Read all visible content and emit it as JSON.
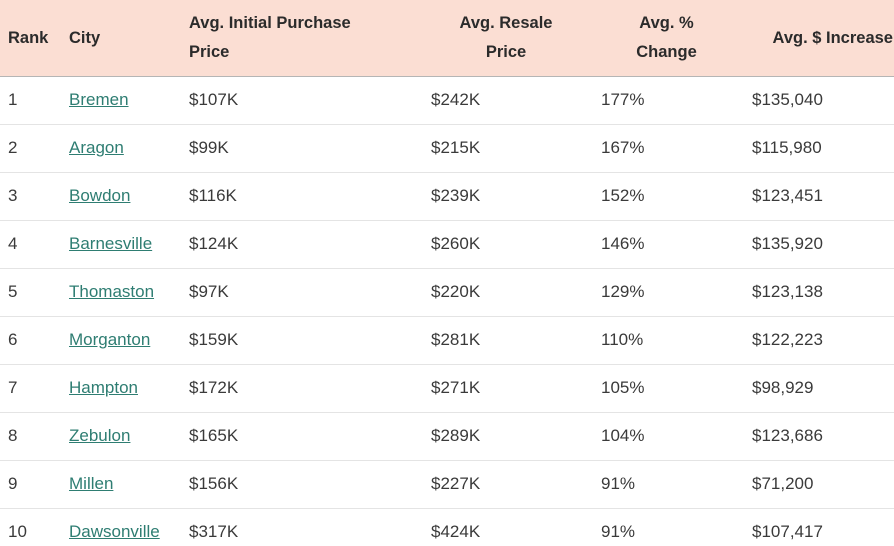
{
  "colors": {
    "header_bg": "#fbded3",
    "header_text": "#2b2b2b",
    "body_text": "#3a3a3a",
    "link_teal": "#2e7d72",
    "row_border": "#e4e4e4",
    "header_border": "#b5b5b5"
  },
  "table": {
    "headers": {
      "rank": "Rank",
      "city": "City",
      "initial_price": "Avg. Initial Purchase\nPrice",
      "resale_price": "Avg. Resale\nPrice",
      "pct_change": "Avg. %\nChange",
      "dollar_increase": "Avg. $ Increase"
    },
    "rows": [
      {
        "rank": "1",
        "city": "Bremen",
        "initial_price": "$107K",
        "resale_price": "$242K",
        "pct_change": "177%",
        "dollar_increase": "$135,040"
      },
      {
        "rank": "2",
        "city": "Aragon",
        "initial_price": "$99K",
        "resale_price": "$215K",
        "pct_change": "167%",
        "dollar_increase": "$115,980"
      },
      {
        "rank": "3",
        "city": "Bowdon",
        "initial_price": "$116K",
        "resale_price": "$239K",
        "pct_change": "152%",
        "dollar_increase": "$123,451"
      },
      {
        "rank": "4",
        "city": "Barnesville",
        "initial_price": "$124K",
        "resale_price": "$260K",
        "pct_change": "146%",
        "dollar_increase": "$135,920"
      },
      {
        "rank": "5",
        "city": "Thomaston",
        "initial_price": "$97K",
        "resale_price": "$220K",
        "pct_change": "129%",
        "dollar_increase": "$123,138"
      },
      {
        "rank": "6",
        "city": "Morganton",
        "initial_price": "$159K",
        "resale_price": "$281K",
        "pct_change": "110%",
        "dollar_increase": "$122,223"
      },
      {
        "rank": "7",
        "city": "Hampton",
        "initial_price": "$172K",
        "resale_price": "$271K",
        "pct_change": "105%",
        "dollar_increase": "$98,929"
      },
      {
        "rank": "8",
        "city": "Zebulon",
        "initial_price": "$165K",
        "resale_price": "$289K",
        "pct_change": "104%",
        "dollar_increase": "$123,686"
      },
      {
        "rank": "9",
        "city": "Millen",
        "initial_price": "$156K",
        "resale_price": "$227K",
        "pct_change": "91%",
        "dollar_increase": "$71,200"
      },
      {
        "rank": "10",
        "city": "Dawsonville",
        "initial_price": "$317K",
        "resale_price": "$424K",
        "pct_change": "91%",
        "dollar_increase": "$107,417"
      }
    ]
  }
}
